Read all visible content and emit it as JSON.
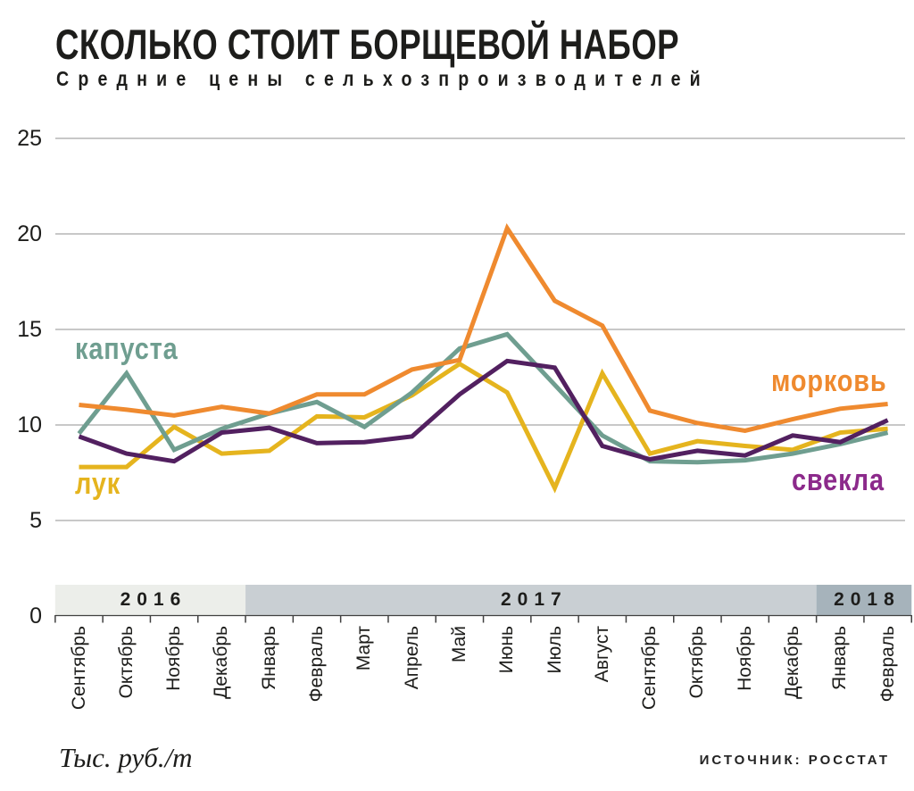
{
  "header": {
    "title": "СКОЛЬКО СТОИТ БОРЩЕВОЙ НАБОР",
    "subtitle": "Средние цены сельхозпроизводителей"
  },
  "chart_data": {
    "type": "line",
    "title": "СКОЛЬКО СТОИТ БОРЩЕВОЙ НАБОР",
    "subtitle": "Средние цены сельхозпроизводителей",
    "ylabel": "Тыс. руб./т",
    "ylim": [
      0,
      25
    ],
    "y_ticks": [
      25,
      20,
      15,
      10,
      5,
      0
    ],
    "grid": "horizontal",
    "x_categories": [
      "Сентябрь",
      "Октябрь",
      "Ноябрь",
      "Декабрь",
      "Январь",
      "Февраль",
      "Март",
      "Апрель",
      "Май",
      "Июнь",
      "Июль",
      "Август",
      "Сентябрь",
      "Октябрь",
      "Ноябрь",
      "Декабрь",
      "Январь",
      "Февраль"
    ],
    "year_bands": [
      {
        "label": "2016",
        "months": 4,
        "color": "#ECEEEA"
      },
      {
        "label": "2017",
        "months": 12,
        "color": "#C9CFD3"
      },
      {
        "label": "2018",
        "months": 2,
        "color": "#A6B3BB"
      }
    ],
    "series": [
      {
        "name": "luk",
        "label": "лук",
        "color": "#E5B41E",
        "label_color": "#E5B41E",
        "values": [
          7.8,
          7.8,
          9.9,
          8.5,
          8.65,
          10.45,
          10.4,
          11.55,
          13.2,
          11.7,
          6.7,
          12.7,
          8.5,
          9.15,
          8.9,
          8.7,
          9.6,
          9.8
        ]
      },
      {
        "name": "kapusta",
        "label": "капуста",
        "color": "#6F9E90",
        "label_color": "#6F9E90",
        "values": [
          9.55,
          12.7,
          8.7,
          9.8,
          10.6,
          11.2,
          9.9,
          11.7,
          14.0,
          14.75,
          12.1,
          9.45,
          8.1,
          8.05,
          8.15,
          8.5,
          9.0,
          9.6
        ]
      },
      {
        "name": "morkov",
        "label": "морковь",
        "color": "#EF8A2F",
        "label_color": "#EF8A2F",
        "values": [
          11.05,
          10.8,
          10.5,
          10.95,
          10.6,
          11.6,
          11.6,
          12.9,
          13.4,
          20.3,
          16.5,
          15.2,
          10.75,
          10.1,
          9.7,
          10.3,
          10.85,
          11.1
        ]
      },
      {
        "name": "svekla",
        "label": "свекла",
        "color": "#522060",
        "label_color": "#8C2A8B",
        "values": [
          9.4,
          8.5,
          8.1,
          9.6,
          9.85,
          9.05,
          9.1,
          9.4,
          11.6,
          13.35,
          13.0,
          8.9,
          8.2,
          8.65,
          8.4,
          9.45,
          9.1,
          10.25
        ]
      }
    ],
    "legend_position": "inside-plot"
  },
  "footer": {
    "unit": "Тыс. руб./т",
    "source": "ИСТОЧНИК: РОССТАТ"
  }
}
